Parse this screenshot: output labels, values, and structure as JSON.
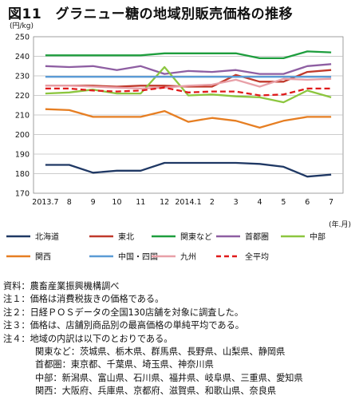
{
  "title": "図11　グラニュー糖の地域別販売価格の推移",
  "chart_data": {
    "type": "line",
    "ylabel": "(円/kg)",
    "xlabel": "(年.月)",
    "ylim": [
      170,
      250
    ],
    "yticks": [
      170,
      180,
      190,
      200,
      210,
      220,
      230,
      240,
      250
    ],
    "grid": true,
    "legend_position": "bottom",
    "categories": [
      "2013.7",
      "8",
      "9",
      "10",
      "11",
      "12",
      "2014.1",
      "2",
      "3",
      "4",
      "5",
      "6",
      "7"
    ],
    "series": [
      {
        "name": "北海道",
        "color": "#1f3864",
        "dash": false,
        "values": [
          184.5,
          184.5,
          180.5,
          181.5,
          181.5,
          185.5,
          185.5,
          185.5,
          185.5,
          185.0,
          183.5,
          178.5,
          179.5
        ]
      },
      {
        "name": "東北",
        "color": "#c0392b",
        "dash": false,
        "values": [
          225.0,
          225.0,
          225.0,
          224.5,
          225.0,
          225.0,
          224.5,
          224.5,
          230.5,
          227.0,
          227.0,
          232.0,
          233.0
        ]
      },
      {
        "name": "関東など",
        "color": "#1e9e3e",
        "dash": false,
        "values": [
          240.5,
          240.5,
          240.5,
          240.5,
          240.5,
          241.5,
          241.5,
          241.5,
          241.5,
          239.0,
          239.0,
          242.5,
          242.0
        ]
      },
      {
        "name": "首都圏",
        "color": "#8e5ea2",
        "dash": false,
        "values": [
          235.0,
          234.5,
          235.0,
          233.0,
          235.0,
          231.0,
          232.5,
          232.0,
          233.0,
          231.0,
          231.0,
          235.0,
          236.0
        ]
      },
      {
        "name": "中部",
        "color": "#8cc63f",
        "dash": false,
        "values": [
          221.0,
          221.5,
          223.0,
          221.0,
          221.0,
          234.5,
          220.0,
          220.5,
          219.5,
          219.0,
          216.5,
          222.5,
          219.0
        ]
      },
      {
        "name": "関西",
        "color": "#e67e22",
        "dash": false,
        "values": [
          213.0,
          212.5,
          209.0,
          209.0,
          209.0,
          212.0,
          206.5,
          208.5,
          207.0,
          203.5,
          207.0,
          209.0,
          209.0
        ]
      },
      {
        "name": "中国・四国",
        "color": "#5b9bd5",
        "dash": false,
        "values": [
          229.5,
          229.5,
          229.5,
          229.5,
          229.5,
          229.5,
          229.5,
          229.5,
          229.5,
          229.5,
          229.5,
          229.5,
          229.5
        ]
      },
      {
        "name": "九州",
        "color": "#e8a0a8",
        "dash": false,
        "values": [
          225.0,
          225.0,
          224.5,
          224.0,
          223.5,
          224.0,
          225.0,
          225.5,
          228.0,
          224.5,
          228.5,
          228.0,
          228.5
        ]
      },
      {
        "name": "全平均",
        "color": "#e01a1a",
        "dash": true,
        "values": [
          223.5,
          223.5,
          222.5,
          222.0,
          222.5,
          224.0,
          221.5,
          222.0,
          222.0,
          220.0,
          220.5,
          223.5,
          223.5
        ]
      }
    ]
  },
  "notes": [
    "資料：農畜産業振興機構調べ",
    "注１：価格は消費税抜きの価格である。",
    "注２：日経ＰＯＳデータの全国130店舗を対象に調査した。",
    "注３：価格は、店舗別商品別の最高価格の単純平均である。",
    "注４：地域の内訳は以下のとおりである。",
    "関東など：茨城県、栃木県、群馬県、長野県、山梨県、静岡県",
    "首都圏：東京都、千葉県、埼玉県、神奈川県",
    "中部：新潟県、富山県、石川県、福井県、岐阜県、三重県、愛知県",
    "関西：大阪府、兵庫県、京都府、滋賀県、和歌山県、奈良県"
  ]
}
